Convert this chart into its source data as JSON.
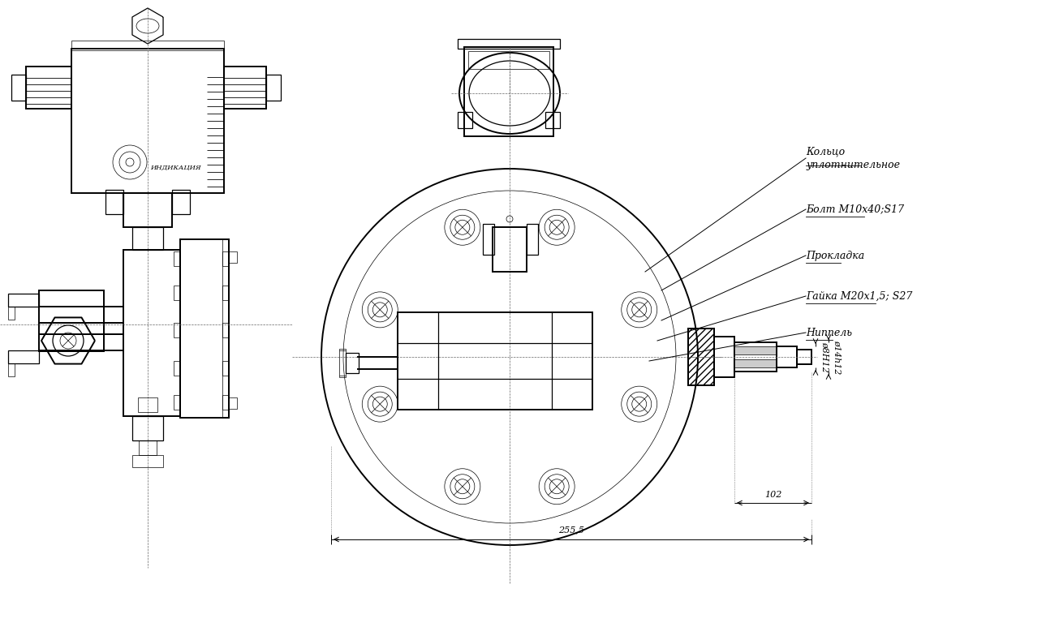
{
  "bg_color": "#ffffff",
  "labels": {
    "kolco": "Кольцо\nуплотнительное",
    "bolt": "Болт М10х40;S17",
    "prokladka": "Прокладка",
    "gaika": "Гайка М20х1,5; S27",
    "nippel": "Ниппель",
    "dim1": "ø8H12",
    "dim2": "ø14h12",
    "dim_102": "102",
    "dim_255": "255,5",
    "indikaciya": "ИНДИКАЦИЯ"
  },
  "lw_heavy": 1.4,
  "lw_med": 0.9,
  "lw_thin": 0.5,
  "fs_label": 9,
  "fs_dim": 8,
  "fs_small": 7
}
